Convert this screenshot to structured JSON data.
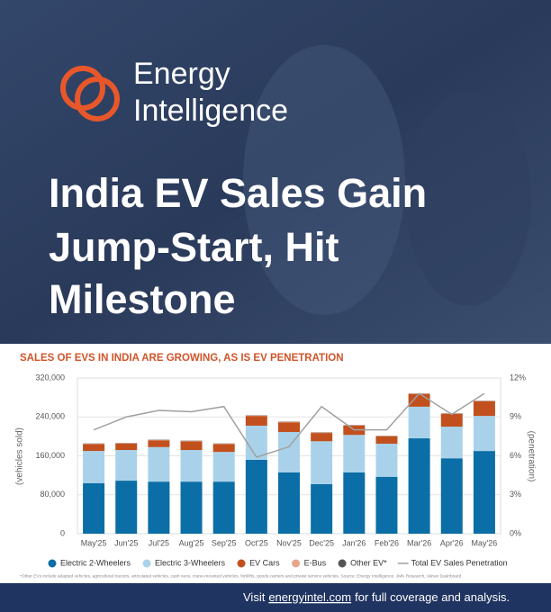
{
  "header": {
    "brand": [
      "Energy",
      "Intelligence"
    ],
    "headline": [
      "India EV Sales Gain",
      "Jump-Start, Hit",
      "Milestone"
    ]
  },
  "chart_data": {
    "type": "bar",
    "stacked": true,
    "title": "SALES OF EVS IN INDIA ARE GROWING, AS IS EV PENETRATION",
    "y_label": "(vehicles sold)",
    "y2_label": "(penetration)",
    "categories": [
      "May'25",
      "Jun'25",
      "Jul'25",
      "Aug'25",
      "Sep'25",
      "Oct'25",
      "Nov'25",
      "Dec'25",
      "Jan'26",
      "Feb'26",
      "Mar'26",
      "Apr'26",
      "May'26"
    ],
    "series": [
      {
        "name": "Electric 2-Wheelers",
        "color": "#0b6ea6",
        "values": [
          104000,
          109000,
          107000,
          107000,
          107000,
          152000,
          126000,
          102000,
          126000,
          117000,
          196000,
          155000,
          170000
        ]
      },
      {
        "name": "Electric 3-Wheelers",
        "color": "#a9d2ea",
        "values": [
          66000,
          63000,
          71000,
          65000,
          61000,
          70000,
          83000,
          88000,
          77000,
          68000,
          65000,
          65000,
          72000
        ]
      },
      {
        "name": "EV Cars",
        "color": "#c2501e",
        "values": [
          14000,
          13000,
          14000,
          18000,
          16000,
          20000,
          20000,
          17000,
          19000,
          15000,
          26000,
          26000,
          30000
        ]
      },
      {
        "name": "E-Bus",
        "color": "#e6a58c",
        "values": [
          1000,
          1000,
          1000,
          1000,
          1000,
          1000,
          1000,
          1000,
          1000,
          1000,
          1000,
          1000,
          1000
        ]
      },
      {
        "name": "Other EV*",
        "color": "#555555",
        "values": [
          500,
          500,
          500,
          500,
          500,
          500,
          500,
          500,
          500,
          500,
          500,
          500,
          500
        ]
      },
      {
        "name": "Total EV Sales Penetration",
        "type": "line",
        "axis": "y2",
        "color": "#a0a0a0",
        "values": [
          8.0,
          9.0,
          9.5,
          9.4,
          9.8,
          5.9,
          6.7,
          9.8,
          8.0,
          8.0,
          10.8,
          9.2,
          10.8
        ]
      }
    ],
    "ylim": [
      0,
      320000
    ],
    "yticks": [
      0,
      {
        "value": 80000,
        "label": "80,000"
      },
      {
        "value": 160000,
        "label": "160,000"
      },
      {
        "value": 240000,
        "label": "240,000"
      },
      {
        "value": 320000,
        "label": "320,000"
      }
    ],
    "y2lim": [
      0,
      12
    ],
    "y2ticks": [
      {
        "value": 0,
        "label": "0%"
      },
      {
        "value": 3,
        "label": "3%"
      },
      {
        "value": 6,
        "label": "6%"
      },
      {
        "value": 9,
        "label": "9%"
      },
      {
        "value": 12,
        "label": "12%"
      }
    ],
    "grid": true,
    "legend": "bottom",
    "footnote": "*Other EVs include adapted vehicles, agricultural tractors, articulated vehicles, cash vans, crane-mounted vehicles, forklifts, goods carriers and private service vehicles. Source: Energy Intelligence, JMK Research, Vahan Dashboard"
  },
  "footer": {
    "prefix": "Visit",
    "link": "energyintel.com",
    "suffix": "for full coverage and analysis."
  }
}
